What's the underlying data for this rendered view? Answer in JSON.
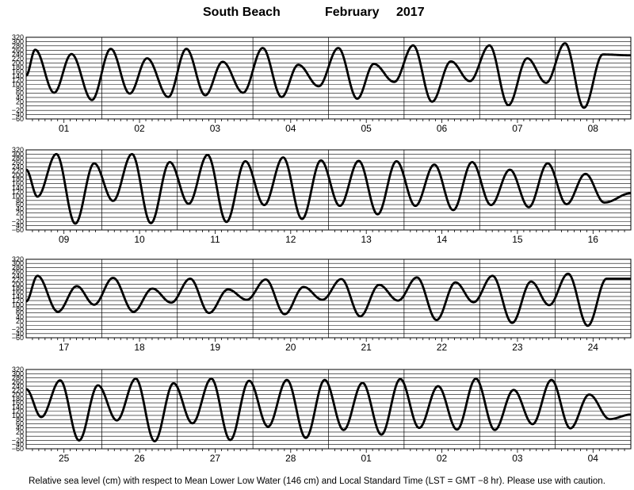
{
  "title": {
    "location": "South Beach",
    "month": "February",
    "year": "2017"
  },
  "footer": "Relative sea level (cm) with respect to Mean Lower Low Water (146 cm) and Local Standard Time (LST = GMT −8 hr). Please use with caution.",
  "chart_data": {
    "type": "line",
    "grid": true,
    "ylim": [
      -60,
      320
    ],
    "y_ticks": [
      "320",
      "300",
      "280",
      "260",
      "240",
      "220",
      "200",
      "180",
      "160",
      "140",
      "120",
      "100",
      "80",
      "60",
      "40",
      "20",
      "0",
      "−20",
      "−40",
      "−60"
    ],
    "rows": [
      {
        "days": [
          "01",
          "02",
          "03",
          "04",
          "05",
          "06",
          "07",
          "08"
        ],
        "extrema": [
          [
            0,
            142
          ],
          [
            0.12,
            262
          ],
          [
            0.37,
            62
          ],
          [
            0.6,
            242
          ],
          [
            0.87,
            28
          ],
          [
            1.12,
            266
          ],
          [
            1.37,
            58
          ],
          [
            1.6,
            222
          ],
          [
            1.88,
            42
          ],
          [
            2.12,
            266
          ],
          [
            2.37,
            50
          ],
          [
            2.6,
            206
          ],
          [
            2.87,
            62
          ],
          [
            3.13,
            270
          ],
          [
            3.38,
            42
          ],
          [
            3.6,
            192
          ],
          [
            3.87,
            92
          ],
          [
            4.13,
            270
          ],
          [
            4.38,
            34
          ],
          [
            4.6,
            196
          ],
          [
            4.87,
            112
          ],
          [
            5.12,
            282
          ],
          [
            5.37,
            20
          ],
          [
            5.62,
            208
          ],
          [
            5.87,
            116
          ],
          [
            6.13,
            282
          ],
          [
            6.38,
            4
          ],
          [
            6.63,
            222
          ],
          [
            6.88,
            108
          ],
          [
            7.13,
            292
          ],
          [
            7.38,
            -8
          ],
          [
            7.63,
            240
          ],
          [
            8,
            236
          ]
        ]
      },
      {
        "days": [
          "09",
          "10",
          "11",
          "12",
          "13",
          "14",
          "15",
          "16"
        ],
        "extrema": [
          [
            0,
            226
          ],
          [
            0.15,
            98
          ],
          [
            0.4,
            300
          ],
          [
            0.65,
            -30
          ],
          [
            0.9,
            256
          ],
          [
            1.15,
            78
          ],
          [
            1.4,
            300
          ],
          [
            1.65,
            -28
          ],
          [
            1.9,
            262
          ],
          [
            2.15,
            64
          ],
          [
            2.4,
            296
          ],
          [
            2.65,
            -22
          ],
          [
            2.9,
            266
          ],
          [
            3.15,
            58
          ],
          [
            3.4,
            284
          ],
          [
            3.65,
            -8
          ],
          [
            3.9,
            270
          ],
          [
            4.15,
            54
          ],
          [
            4.4,
            268
          ],
          [
            4.65,
            14
          ],
          [
            4.9,
            266
          ],
          [
            5.15,
            54
          ],
          [
            5.4,
            250
          ],
          [
            5.65,
            34
          ],
          [
            5.9,
            262
          ],
          [
            6.15,
            58
          ],
          [
            6.4,
            226
          ],
          [
            6.65,
            48
          ],
          [
            6.9,
            256
          ],
          [
            7.15,
            62
          ],
          [
            7.4,
            206
          ],
          [
            7.65,
            70
          ],
          [
            8,
            114
          ]
        ]
      },
      {
        "days": [
          "17",
          "18",
          "19",
          "20",
          "21",
          "22",
          "23",
          "24"
        ],
        "extrema": [
          [
            0,
            116
          ],
          [
            0.15,
            240
          ],
          [
            0.42,
            66
          ],
          [
            0.67,
            190
          ],
          [
            0.9,
            100
          ],
          [
            1.15,
            230
          ],
          [
            1.42,
            66
          ],
          [
            1.67,
            178
          ],
          [
            1.92,
            110
          ],
          [
            2.17,
            226
          ],
          [
            2.42,
            60
          ],
          [
            2.67,
            174
          ],
          [
            2.92,
            124
          ],
          [
            3.17,
            222
          ],
          [
            3.42,
            54
          ],
          [
            3.67,
            186
          ],
          [
            3.92,
            124
          ],
          [
            4.17,
            224
          ],
          [
            4.42,
            44
          ],
          [
            4.67,
            196
          ],
          [
            4.92,
            120
          ],
          [
            5.17,
            232
          ],
          [
            5.43,
            26
          ],
          [
            5.68,
            208
          ],
          [
            5.92,
            112
          ],
          [
            6.17,
            240
          ],
          [
            6.43,
            12
          ],
          [
            6.68,
            212
          ],
          [
            6.92,
            98
          ],
          [
            7.17,
            250
          ],
          [
            7.43,
            -2
          ],
          [
            7.68,
            226
          ],
          [
            8,
            226
          ]
        ]
      },
      {
        "days": [
          "25",
          "26",
          "27",
          "28",
          "01",
          "02",
          "03",
          "04"
        ],
        "extrema": [
          [
            0,
            226
          ],
          [
            0.2,
            92
          ],
          [
            0.45,
            268
          ],
          [
            0.7,
            -20
          ],
          [
            0.95,
            244
          ],
          [
            1.2,
            76
          ],
          [
            1.45,
            276
          ],
          [
            1.7,
            -24
          ],
          [
            1.95,
            254
          ],
          [
            2.2,
            62
          ],
          [
            2.45,
            276
          ],
          [
            2.7,
            -18
          ],
          [
            2.95,
            266
          ],
          [
            3.2,
            46
          ],
          [
            3.45,
            270
          ],
          [
            3.7,
            -8
          ],
          [
            3.95,
            270
          ],
          [
            4.2,
            30
          ],
          [
            4.45,
            256
          ],
          [
            4.7,
            8
          ],
          [
            4.95,
            274
          ],
          [
            5.2,
            40
          ],
          [
            5.45,
            240
          ],
          [
            5.7,
            32
          ],
          [
            5.95,
            276
          ],
          [
            6.2,
            30
          ],
          [
            6.45,
            222
          ],
          [
            6.7,
            58
          ],
          [
            6.95,
            270
          ],
          [
            7.2,
            38
          ],
          [
            7.45,
            200
          ],
          [
            7.72,
            82
          ],
          [
            8,
            104
          ]
        ]
      }
    ]
  }
}
